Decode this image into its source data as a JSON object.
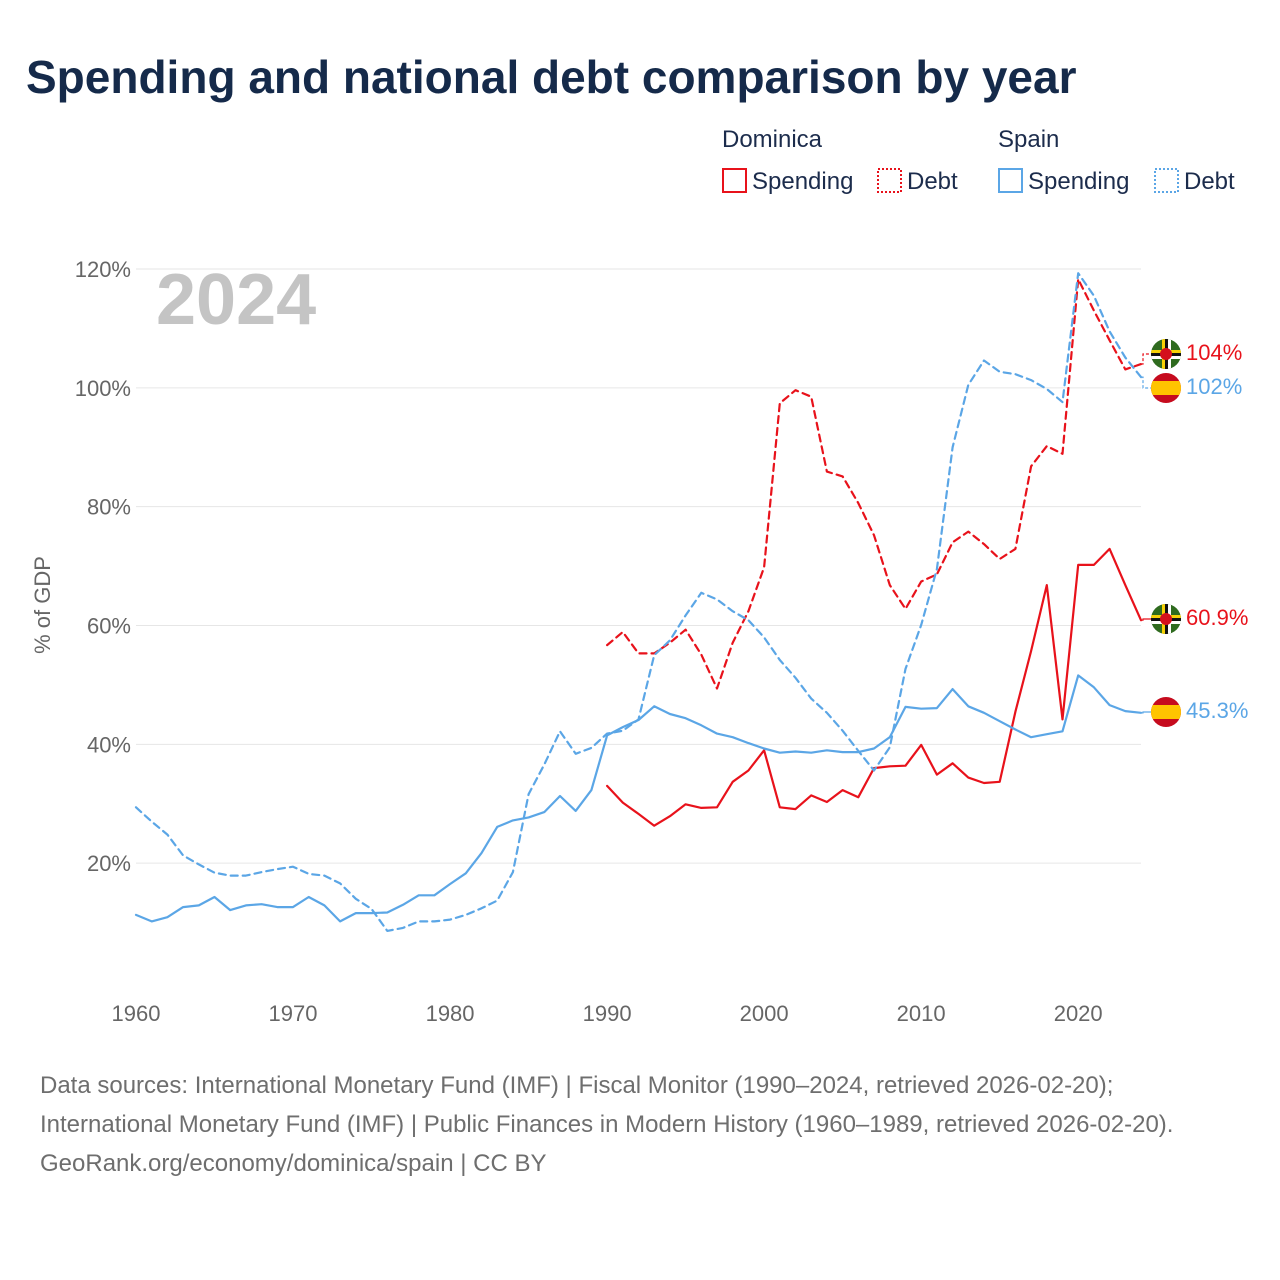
{
  "title": "Spending and national debt comparison by year",
  "legend": {
    "groups": [
      {
        "country": "Dominica",
        "color": "#e8121b",
        "items": [
          "Spending",
          "Debt"
        ]
      },
      {
        "country": "Spain",
        "color": "#5ba6e6",
        "items": [
          "Spending",
          "Debt"
        ]
      }
    ]
  },
  "footer": {
    "sources": "Data sources: International Monetary Fund (IMF) | Fiscal Monitor (1990–2024, retrieved 2026-02-20); International Monetary Fund (IMF) | Public Finances in Modern History (1960–1989, retrieved 2026-02-20).",
    "credit": "GeoRank.org/economy/dominica/spain | CC BY"
  },
  "chart_data": {
    "type": "line",
    "title": "Spending and national debt comparison by year",
    "year_label": "2024",
    "ylabel": "% of GDP",
    "xlabel": "",
    "xlim": [
      1960,
      2024
    ],
    "ylim": [
      0,
      120
    ],
    "x_ticks": [
      "1960",
      "1970",
      "1980",
      "1990",
      "2000",
      "2010",
      "2020"
    ],
    "y_ticks": [
      "20%",
      "40%",
      "60%",
      "80%",
      "100%",
      "120%"
    ],
    "grid": true,
    "series": [
      {
        "name": "Dominica Spending",
        "country": "Dominica",
        "kind": "Spending",
        "color": "#e8121b",
        "dashed": false,
        "start_year": 1990,
        "values": [
          33.0,
          30.2,
          28.3,
          26.3,
          27.9,
          29.9,
          29.3,
          29.4,
          33.7,
          35.6,
          39.0,
          29.4,
          29.1,
          31.4,
          30.3,
          32.3,
          31.1,
          36.0,
          36.3,
          36.4,
          39.9,
          34.9,
          36.8,
          34.4,
          33.5,
          33.7,
          45.5,
          55.7,
          66.8,
          44.2,
          70.2,
          70.2,
          72.9,
          66.8,
          60.9
        ],
        "end_label": "60.9%"
      },
      {
        "name": "Dominica Debt",
        "country": "Dominica",
        "kind": "Debt",
        "color": "#e8121b",
        "dashed": true,
        "start_year": 1990,
        "values": [
          56.7,
          58.9,
          55.3,
          55.3,
          57.1,
          59.3,
          55.1,
          49.4,
          57.1,
          62.4,
          69.8,
          97.4,
          99.6,
          98.5,
          85.9,
          85.1,
          80.6,
          75.2,
          66.8,
          62.8,
          67.4,
          68.6,
          74.0,
          75.8,
          73.7,
          71.2,
          72.9,
          86.8,
          90.2,
          88.9,
          118.3,
          113.0,
          108.0,
          103.1,
          104.0
        ],
        "end_label": "104%"
      },
      {
        "name": "Spain Spending",
        "country": "Spain",
        "kind": "Spending",
        "color": "#5ba6e6",
        "dashed": false,
        "start_year": 1960,
        "values": [
          11.3,
          10.2,
          10.9,
          12.6,
          12.9,
          14.3,
          12.1,
          12.9,
          13.1,
          12.6,
          12.6,
          14.3,
          12.9,
          10.2,
          11.6,
          11.6,
          11.7,
          13.0,
          14.6,
          14.6,
          16.5,
          18.3,
          21.7,
          26.1,
          27.2,
          27.7,
          28.6,
          31.3,
          28.8,
          32.3,
          41.5,
          42.9,
          44.1,
          46.4,
          45.1,
          44.4,
          43.2,
          41.8,
          41.2,
          40.2,
          39.3,
          38.6,
          38.8,
          38.6,
          39.0,
          38.7,
          38.7,
          39.3,
          41.2,
          46.3,
          46.0,
          46.1,
          49.3,
          46.4,
          45.3,
          43.9,
          42.5,
          41.2,
          41.7,
          42.2,
          51.6,
          49.6,
          46.6,
          45.6,
          45.3
        ],
        "end_label": "45.3%"
      },
      {
        "name": "Spain Debt",
        "country": "Spain",
        "kind": "Debt",
        "color": "#5ba6e6",
        "dashed": true,
        "start_year": 1960,
        "values": [
          29.4,
          27.0,
          24.8,
          21.3,
          19.8,
          18.4,
          17.9,
          17.9,
          18.5,
          19.0,
          19.4,
          18.2,
          17.9,
          16.6,
          14.0,
          12.3,
          8.6,
          9.1,
          10.2,
          10.2,
          10.5,
          11.3,
          12.4,
          13.7,
          18.5,
          31.6,
          36.6,
          42.2,
          38.4,
          39.4,
          41.8,
          42.3,
          44.2,
          55.0,
          57.5,
          61.7,
          65.5,
          64.4,
          62.4,
          60.9,
          58.0,
          54.2,
          51.2,
          47.7,
          45.3,
          42.3,
          38.9,
          35.6,
          39.5,
          52.7,
          60.1,
          69.5,
          90.0,
          100.5,
          104.6,
          102.7,
          102.3,
          101.3,
          99.8,
          97.6,
          119.3,
          115.5,
          109.5,
          105.1,
          101.8
        ],
        "end_label": "102%"
      }
    ]
  }
}
